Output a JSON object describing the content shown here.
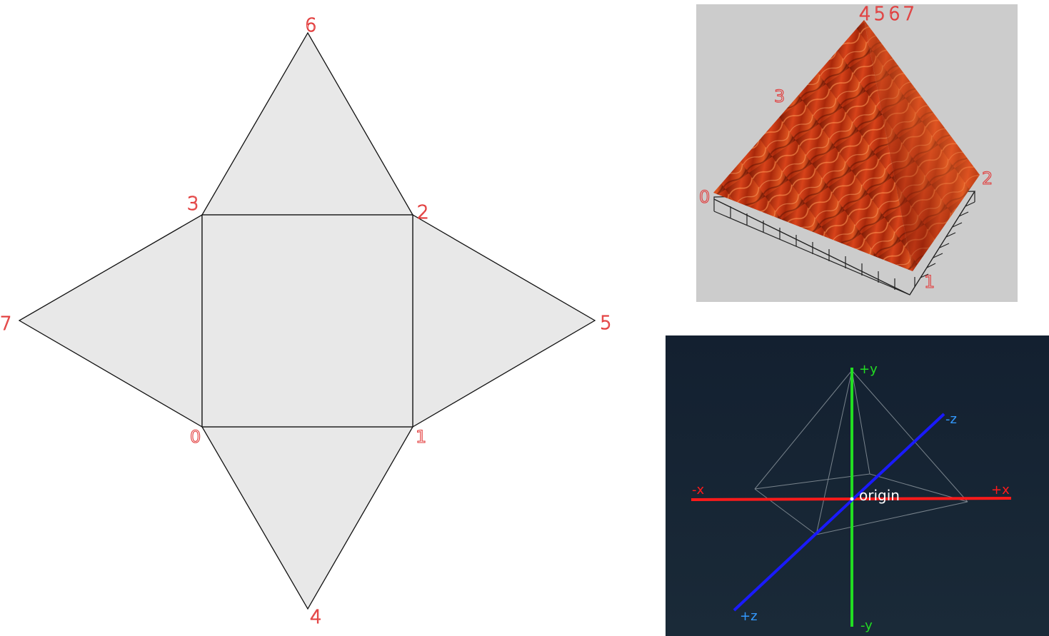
{
  "net": {
    "vertex_labels": {
      "v0": "0",
      "v1": "1",
      "v2": "2",
      "v3": "3",
      "v4": "4",
      "v5": "5",
      "v6": "6",
      "v7": "7"
    },
    "face_color": "#e8e8e8",
    "label_color": "#e23a3a"
  },
  "render": {
    "apex_label": "4567",
    "vertex_labels": {
      "v0": "0",
      "v1": "1",
      "v2": "2",
      "v3": "3"
    },
    "background_color": "#cccccc"
  },
  "axes": {
    "labels": {
      "pos_x": "+x",
      "neg_x": "-x",
      "pos_y": "+y",
      "neg_y": "-y",
      "pos_z": "+z",
      "neg_z": "-z",
      "origin": "origin"
    },
    "colors": {
      "x": "#ff1a1a",
      "y": "#22dd22",
      "z": "#1a1aff",
      "z_label": "#3399ff",
      "background_top": "#132030",
      "background_bottom": "#1a2a38"
    }
  }
}
